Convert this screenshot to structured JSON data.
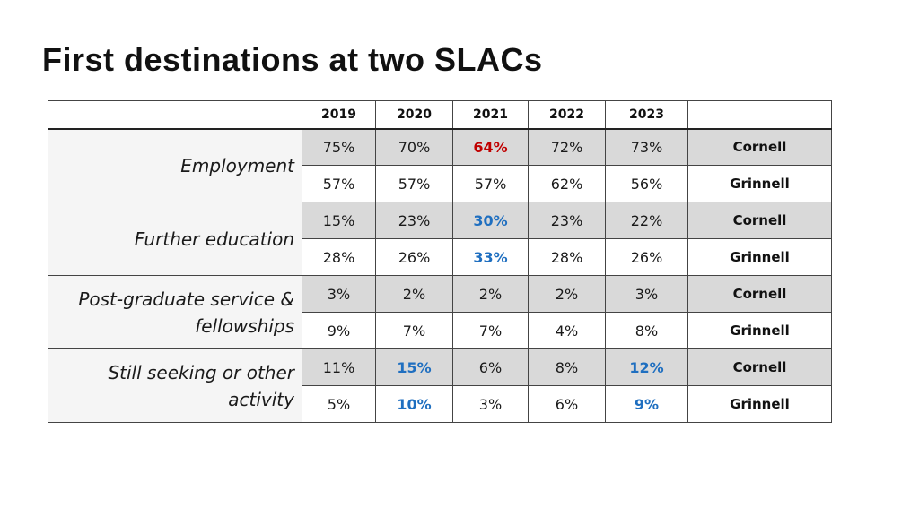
{
  "title": "First destinations at two SLACs",
  "colors": {
    "red_highlight": "#c00000",
    "blue_highlight": "#1f6fc0",
    "cornell_row": "#d9d9d9"
  },
  "table": {
    "years": [
      "2019",
      "2020",
      "2021",
      "2022",
      "2023"
    ],
    "groups": [
      {
        "category": "Employment",
        "cornell": {
          "school": "Cornell",
          "values": [
            "75%",
            "70%",
            "64%",
            "72%",
            "73%"
          ]
        },
        "grinnell": {
          "school": "Grinnell",
          "values": [
            "57%",
            "57%",
            "57%",
            "62%",
            "56%"
          ]
        }
      },
      {
        "category": "Further education",
        "cornell": {
          "school": "Cornell",
          "values": [
            "15%",
            "23%",
            "30%",
            "23%",
            "22%"
          ]
        },
        "grinnell": {
          "school": "Grinnell",
          "values": [
            "28%",
            "26%",
            "33%",
            "28%",
            "26%"
          ]
        }
      },
      {
        "category": "Post-graduate service & fellowships",
        "cornell": {
          "school": "Cornell",
          "values": [
            "3%",
            "2%",
            "2%",
            "2%",
            "3%"
          ]
        },
        "grinnell": {
          "school": "Grinnell",
          "values": [
            "9%",
            "7%",
            "7%",
            "4%",
            "8%"
          ]
        }
      },
      {
        "category": "Still seeking or other activity",
        "cornell": {
          "school": "Cornell",
          "values": [
            "11%",
            "15%",
            "6%",
            "8%",
            "12%"
          ]
        },
        "grinnell": {
          "school": "Grinnell",
          "values": [
            "5%",
            "10%",
            "3%",
            "6%",
            "9%"
          ]
        }
      }
    ]
  }
}
